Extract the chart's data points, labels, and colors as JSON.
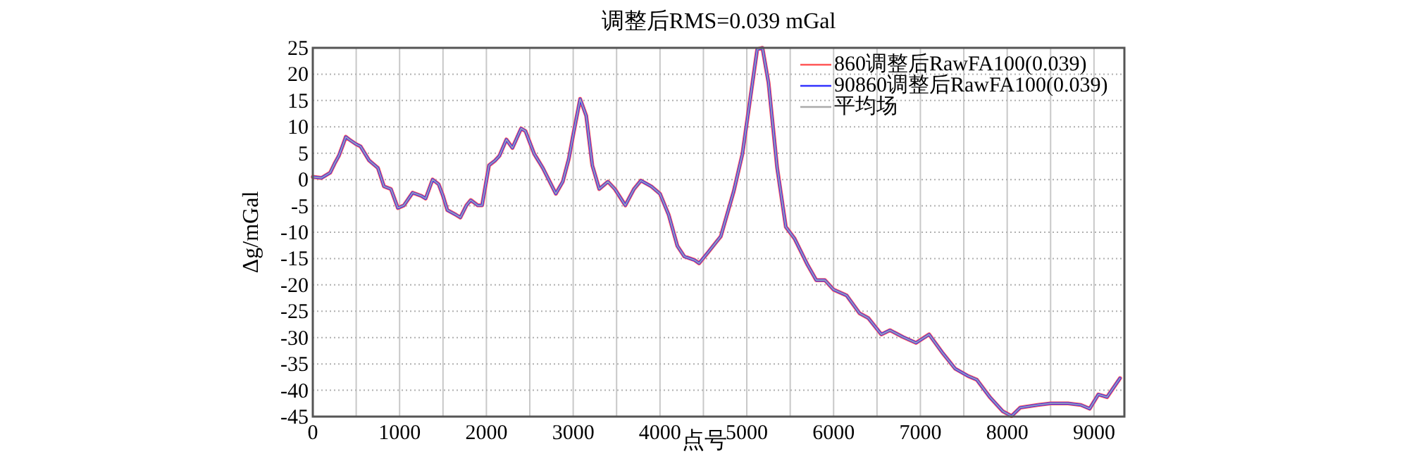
{
  "chart_data": {
    "type": "line",
    "title": "调整后RMS=0.039 mGal",
    "xlabel": "点号",
    "ylabel": "Δg/mGal",
    "x": [
      0,
      100,
      200,
      250,
      300,
      350,
      380,
      420,
      500,
      550,
      650,
      750,
      820,
      900,
      980,
      1050,
      1150,
      1250,
      1300,
      1380,
      1450,
      1500,
      1550,
      1650,
      1700,
      1770,
      1820,
      1900,
      1950,
      2030,
      2100,
      2150,
      2230,
      2300,
      2400,
      2450,
      2550,
      2650,
      2800,
      2880,
      2950,
      3000,
      3080,
      3150,
      3220,
      3300,
      3400,
      3480,
      3600,
      3700,
      3780,
      3900,
      4000,
      4100,
      4200,
      4280,
      4400,
      4450,
      4550,
      4700,
      4850,
      4950,
      5050,
      5120,
      5180,
      5250,
      5350,
      5450,
      5550,
      5700,
      5800,
      5900,
      6000,
      6150,
      6300,
      6400,
      6550,
      6650,
      6800,
      6950,
      7100,
      7250,
      7400,
      7550,
      7650,
      7800,
      7950,
      8050,
      8150,
      8350,
      8500,
      8700,
      8850,
      8950,
      9050,
      9150,
      9300
    ],
    "series": [
      {
        "name": "860调整后RawFA100(0.039)",
        "color": "#ff5555",
        "values": [
          0.5,
          0.3,
          1.3,
          3,
          4.5,
          6.7,
          8.1,
          7.6,
          6.7,
          6.3,
          3.6,
          2.2,
          -1.3,
          -1.8,
          -5.4,
          -4.9,
          -2.5,
          -3.1,
          -3.6,
          0,
          -0.9,
          -3.1,
          -5.8,
          -6.7,
          -7.2,
          -4.9,
          -3.9,
          -4.9,
          -4.9,
          2.7,
          3.6,
          4.5,
          7.6,
          6,
          9.7,
          9.2,
          4.9,
          2.2,
          -2.7,
          -0.4,
          4,
          8.5,
          15.3,
          12.1,
          2.7,
          -1.8,
          -0.4,
          -1.8,
          -4.9,
          -1.8,
          -0.2,
          -1.3,
          -2.7,
          -6.7,
          -12.6,
          -14.6,
          -15.3,
          -15.9,
          -13.9,
          -10.8,
          -2.2,
          4.9,
          16.6,
          24.7,
          25,
          18.4,
          2.2,
          -9,
          -11.2,
          -16.2,
          -19.1,
          -19.1,
          -20.9,
          -22,
          -25.4,
          -26.3,
          -29.4,
          -28.6,
          -29.9,
          -31,
          -29.4,
          -32.8,
          -35.9,
          -37.3,
          -38,
          -41.3,
          -44,
          -44.9,
          -43.3,
          -42.8,
          -42.5,
          -42.5,
          -42.8,
          -43.5,
          -40.8,
          -41.3,
          -37.7
        ]
      },
      {
        "name": "90860调整后RawFA100(0.039)",
        "color": "#3333ff",
        "values": [
          0.5,
          0.3,
          1.3,
          3,
          4.5,
          6.7,
          8.1,
          7.6,
          6.7,
          6.3,
          3.6,
          2.2,
          -1.3,
          -1.8,
          -5.4,
          -4.9,
          -2.5,
          -3.1,
          -3.6,
          0,
          -0.9,
          -3.1,
          -5.8,
          -6.7,
          -7.2,
          -4.9,
          -3.9,
          -4.9,
          -4.9,
          2.7,
          3.6,
          4.5,
          7.6,
          6,
          9.7,
          9.2,
          4.9,
          2.2,
          -2.7,
          -0.4,
          4,
          8.5,
          15.3,
          12.1,
          2.7,
          -1.8,
          -0.4,
          -1.8,
          -4.9,
          -1.8,
          -0.2,
          -1.3,
          -2.7,
          -6.7,
          -12.6,
          -14.6,
          -15.3,
          -15.9,
          -13.9,
          -10.8,
          -2.2,
          4.9,
          16.6,
          24.7,
          25,
          18.4,
          2.2,
          -9,
          -11.2,
          -16.2,
          -19.1,
          -19.1,
          -20.9,
          -22,
          -25.4,
          -26.3,
          -29.4,
          -28.6,
          -29.9,
          -31,
          -29.4,
          -32.8,
          -35.9,
          -37.3,
          -38,
          -41.3,
          -44,
          -44.9,
          -43.3,
          -42.8,
          -42.5,
          -42.5,
          -42.8,
          -43.5,
          -40.8,
          -41.3,
          -37.7
        ]
      },
      {
        "name": "平均场",
        "color": "#aaaaaa",
        "values": [
          0.5,
          0.3,
          1.3,
          3,
          4.5,
          6.7,
          8.1,
          7.6,
          6.7,
          6.3,
          3.6,
          2.2,
          -1.3,
          -1.8,
          -5.4,
          -4.9,
          -2.5,
          -3.1,
          -3.6,
          0,
          -0.9,
          -3.1,
          -5.8,
          -6.7,
          -7.2,
          -4.9,
          -3.9,
          -4.9,
          -4.9,
          2.7,
          3.6,
          4.5,
          7.6,
          6,
          9.7,
          9.2,
          4.9,
          2.2,
          -2.7,
          -0.4,
          4,
          8.5,
          15.3,
          12.1,
          2.7,
          -1.8,
          -0.4,
          -1.8,
          -4.9,
          -1.8,
          -0.2,
          -1.3,
          -2.7,
          -6.7,
          -12.6,
          -14.6,
          -15.3,
          -15.9,
          -13.9,
          -10.8,
          -2.2,
          4.9,
          16.6,
          24.7,
          25,
          18.4,
          2.2,
          -9,
          -11.2,
          -16.2,
          -19.1,
          -19.1,
          -20.9,
          -22,
          -25.4,
          -26.3,
          -29.4,
          -28.6,
          -29.9,
          -31,
          -29.4,
          -32.8,
          -35.9,
          -37.3,
          -38,
          -41.3,
          -44,
          -44.9,
          -43.3,
          -42.8,
          -42.5,
          -42.5,
          -42.8,
          -43.5,
          -40.8,
          -41.3,
          -37.7
        ]
      }
    ],
    "xlim": [
      0,
      9350
    ],
    "ylim": [
      -45,
      25
    ],
    "xticks": [
      0,
      {
        "value": 500,
        "label": null
      },
      1000,
      {
        "value": 1500,
        "label": null
      },
      2000,
      {
        "value": 2500,
        "label": null
      },
      3000,
      {
        "value": 3500,
        "label": null
      },
      4000,
      {
        "value": 4500,
        "label": null
      },
      5000,
      {
        "value": 5500,
        "label": null
      },
      6000,
      {
        "value": 6500,
        "label": null
      },
      7000,
      {
        "value": 7500,
        "label": null
      },
      8000,
      {
        "value": 8500,
        "label": null
      },
      9000
    ],
    "yticks": [
      25,
      20,
      15,
      10,
      5,
      0,
      -5,
      -10,
      -15,
      -20,
      -25,
      -30,
      -35,
      -40,
      -45
    ],
    "grid": true,
    "legend": "top right"
  }
}
